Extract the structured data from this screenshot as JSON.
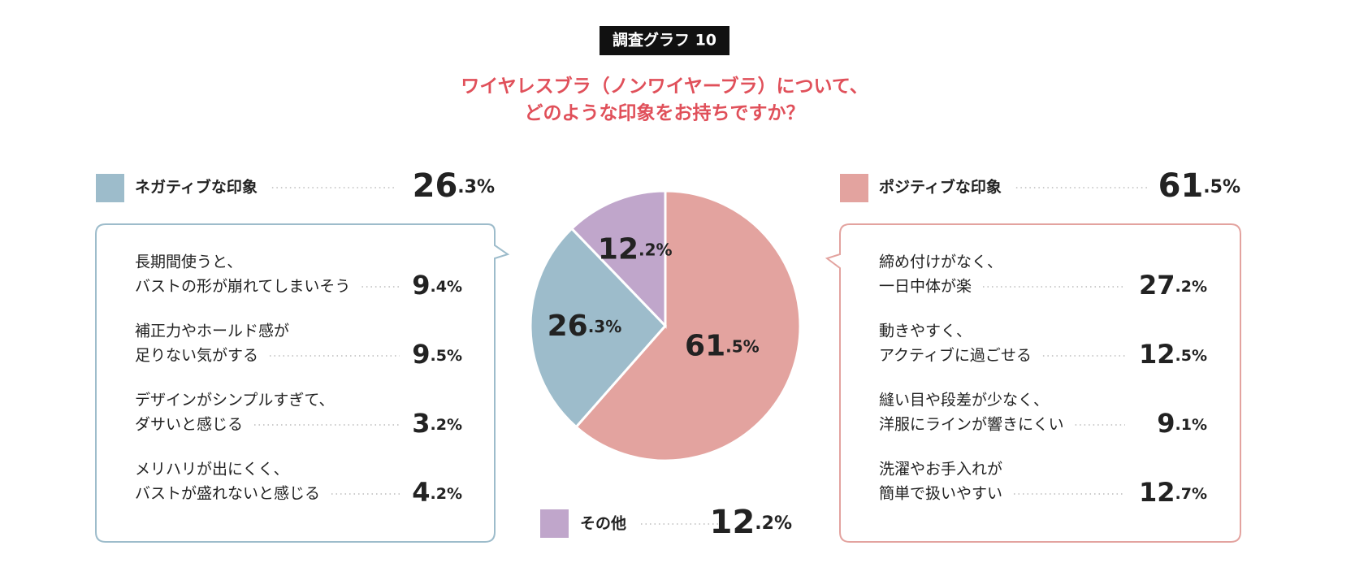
{
  "chart_data": {
    "type": "pie",
    "badge": "調査グラフ 10",
    "title": [
      "ワイヤレスブラ（ノンワイヤーブラ）について、",
      "どのような印象をお持ちですか？"
    ],
    "categories": [
      "ポジティブな印象",
      "ネガティブな印象",
      "その他"
    ],
    "values": [
      61.5,
      26.3,
      12.2
    ],
    "value_labels": [
      "61.5%",
      "26.3%",
      "12.2%"
    ],
    "colors": [
      "#e3a39f",
      "#9dbccb",
      "#c0a6cb"
    ],
    "breakdowns": [
      {
        "labels": [
          [
            "締め付けがなく、",
            "一日中体が楽"
          ],
          [
            "動きやすく、",
            "アクティブに過ごせる"
          ],
          [
            "縫い目や段差が少なく、",
            "洋服にラインが響きにくい"
          ],
          [
            "洗濯やお手入れが",
            "簡単で扱いやすい"
          ]
        ],
        "value_labels": [
          "27.2%",
          "12.5%",
          "9.1%",
          "12.7%"
        ]
      },
      {
        "labels": [
          [
            "長期間使うと、",
            "バストの形が崩れてしまいそう"
          ],
          [
            "補正力やホールド感が",
            "足りない気がする"
          ],
          [
            "デザインがシンプルすぎて、",
            "ダサいと感じる"
          ],
          [
            "メリハリが出にくく、",
            "バストが盛れないと感じる"
          ]
        ],
        "value_labels": [
          "9.4%",
          "9.5%",
          "3.2%",
          "4.2%"
        ]
      }
    ]
  }
}
